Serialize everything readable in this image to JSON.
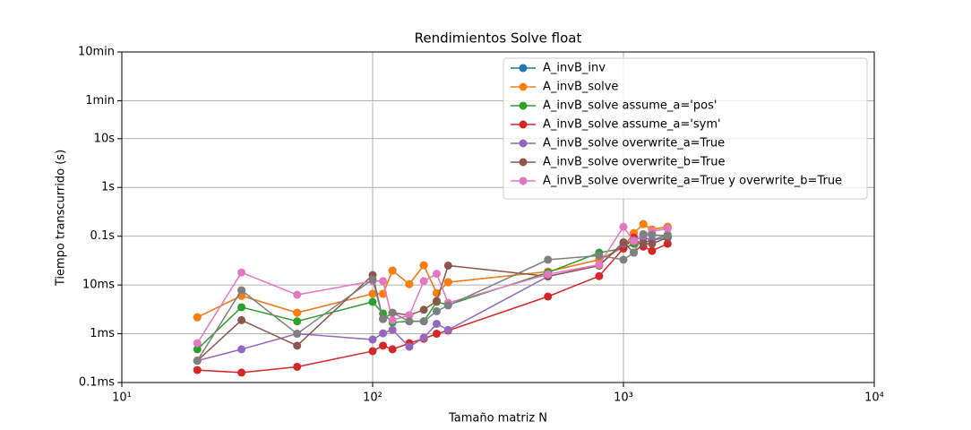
{
  "chart_data": {
    "type": "line",
    "title": "Rendimientos Solve float",
    "x_label": "Tamaño matriz N",
    "y_label": "Tiempo transcurrido (s)",
    "xscale": "log",
    "yscale": "log",
    "grid": true,
    "legend": "upper right",
    "xlim": [
      10,
      10000
    ],
    "xticks": [
      {
        "value": 10,
        "label": "10¹"
      },
      {
        "value": 100,
        "label": "10²"
      },
      {
        "value": 1000,
        "label": "10³"
      },
      {
        "value": 10000,
        "label": "10⁴"
      }
    ],
    "ylim": [
      0.0001,
      600
    ],
    "yticks": [
      {
        "value": 0.0001,
        "label": "0.1ms"
      },
      {
        "value": 0.001,
        "label": "1ms"
      },
      {
        "value": 0.01,
        "label": "10ms"
      },
      {
        "value": 0.1,
        "label": "0.1s"
      },
      {
        "value": 1,
        "label": "1s"
      },
      {
        "value": 10,
        "label": "10s"
      },
      {
        "value": 60,
        "label": "1min"
      },
      {
        "value": 600,
        "label": "10min"
      }
    ],
    "x": [
      20,
      30,
      50,
      100,
      110,
      120,
      140,
      160,
      180,
      200,
      500,
      800,
      1000,
      1100,
      1200,
      1300,
      1500
    ],
    "series": [
      {
        "name": "A_invB_inv",
        "color": "#1f77b4",
        "values": [
          0.00218,
          0.006,
          0.0027,
          0.0066,
          0.0066,
          0.0197,
          0.0104,
          0.0253,
          0.0068,
          0.0114,
          0.0188,
          0.033,
          0.059,
          0.116,
          0.177,
          0.137,
          0.156
        ]
      },
      {
        "name": "A_invB_solve",
        "color": "#ff7f0e",
        "values": [
          0.00218,
          0.006,
          0.0027,
          0.0066,
          0.0066,
          0.0197,
          0.0104,
          0.0253,
          0.0068,
          0.0114,
          0.0188,
          0.033,
          0.059,
          0.116,
          0.177,
          0.137,
          0.156
        ]
      },
      {
        "name": "A_invB_solve assume_a='pos'",
        "color": "#2ca02c",
        "values": [
          0.00048,
          0.0035,
          0.0018,
          0.0045,
          0.0026,
          0.0017,
          0.0018,
          0.0018,
          0.0045,
          0.0039,
          0.018,
          0.046,
          0.056,
          0.07,
          0.075,
          0.083,
          0.107
        ]
      },
      {
        "name": "A_invB_solve assume_a='sym'",
        "color": "#d62728",
        "values": [
          0.00018,
          0.00016,
          0.00021,
          0.00044,
          0.00057,
          0.00048,
          0.00064,
          0.00079,
          0.001,
          0.00116,
          0.0058,
          0.0152,
          0.056,
          0.094,
          0.061,
          0.05,
          0.07
        ]
      },
      {
        "name": "A_invB_solve overwrite_a=True",
        "color": "#9467bd",
        "values": [
          0.00028,
          0.00048,
          0.001,
          0.00076,
          0.00102,
          0.0012,
          0.00054,
          0.00083,
          0.0016,
          0.0012,
          0.015,
          0.025,
          0.07,
          0.083,
          0.094,
          0.083,
          0.094
        ]
      },
      {
        "name": "A_invB_solve overwrite_b=True",
        "color": "#8c564b",
        "values": [
          0.00028,
          0.0019,
          0.00057,
          0.016,
          0.002,
          0.0027,
          0.0024,
          0.0031,
          0.0047,
          0.025,
          0.015,
          0.025,
          0.075,
          0.046,
          0.07,
          0.07,
          0.094
        ]
      },
      {
        "name": "A_invB_solve overwrite_a=True y overwrite_b=True",
        "color": "#e377c2",
        "values": [
          0.00064,
          0.018,
          0.0063,
          0.012,
          0.012,
          0.0019,
          0.0024,
          0.012,
          0.017,
          0.0043,
          0.0166,
          0.026,
          0.156,
          0.079,
          0.107,
          0.126,
          0.143
        ]
      },
      {
        "color": "#7f7f7f",
        "values": [
          0.00028,
          0.0078,
          0.001,
          0.013,
          0.002,
          0.0027,
          0.0018,
          0.0018,
          0.0029,
          0.0038,
          0.033,
          0.04,
          0.033,
          0.046,
          0.11,
          0.107,
          0.103
        ]
      }
    ]
  }
}
